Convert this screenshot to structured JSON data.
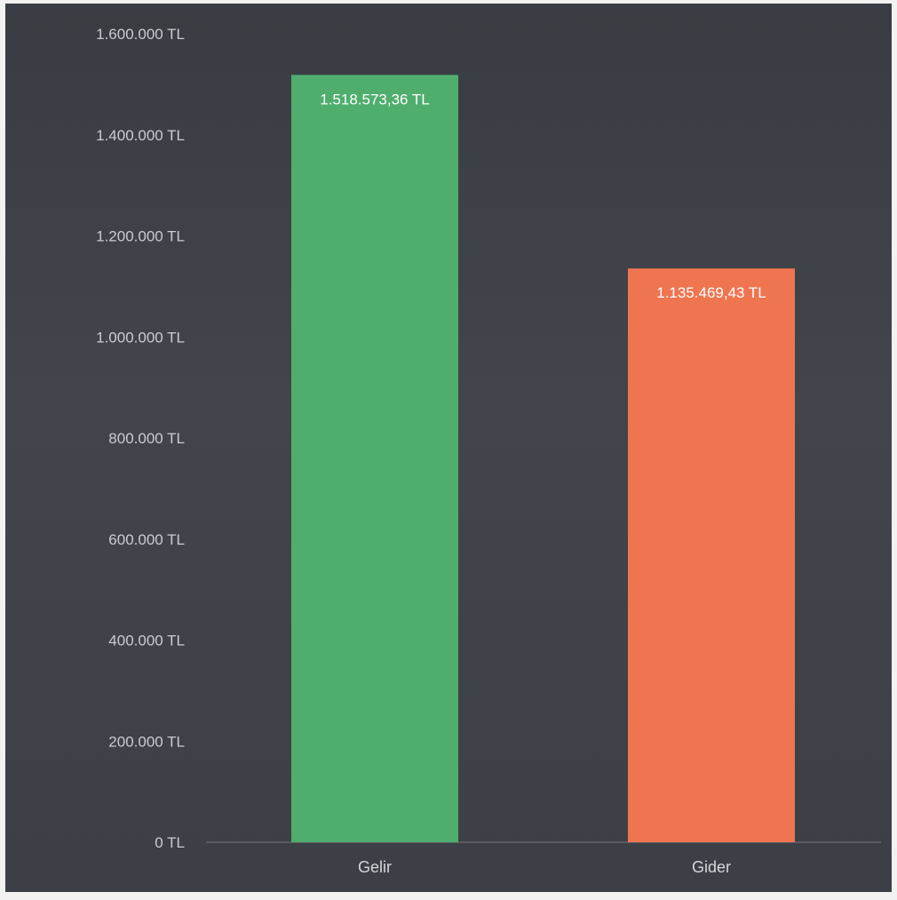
{
  "chart_data": {
    "type": "bar",
    "title": "",
    "xlabel": "",
    "ylabel": "",
    "categories": [
      "Gelir",
      "Gider"
    ],
    "values": [
      1518573.36,
      1135469.43
    ],
    "data_labels": [
      "1.518.573,36 TL",
      "1.135.469,43 TL"
    ],
    "colors": [
      "#4fae6e",
      "#ef7550"
    ],
    "ylim": [
      0,
      1600000
    ],
    "y_ticks": [
      0,
      200000,
      400000,
      600000,
      800000,
      1000000,
      1200000,
      1400000,
      1600000
    ],
    "y_tick_labels": [
      "0 TL",
      "200.000 TL",
      "400.000 TL",
      "600.000 TL",
      "800.000 TL",
      "1.000.000 TL",
      "1.200.000 TL",
      "1.400.000 TL",
      "1.600.000 TL"
    ],
    "grid": false,
    "legend": "none",
    "background": "#3e4147",
    "text_color": "#c9ccd1"
  }
}
